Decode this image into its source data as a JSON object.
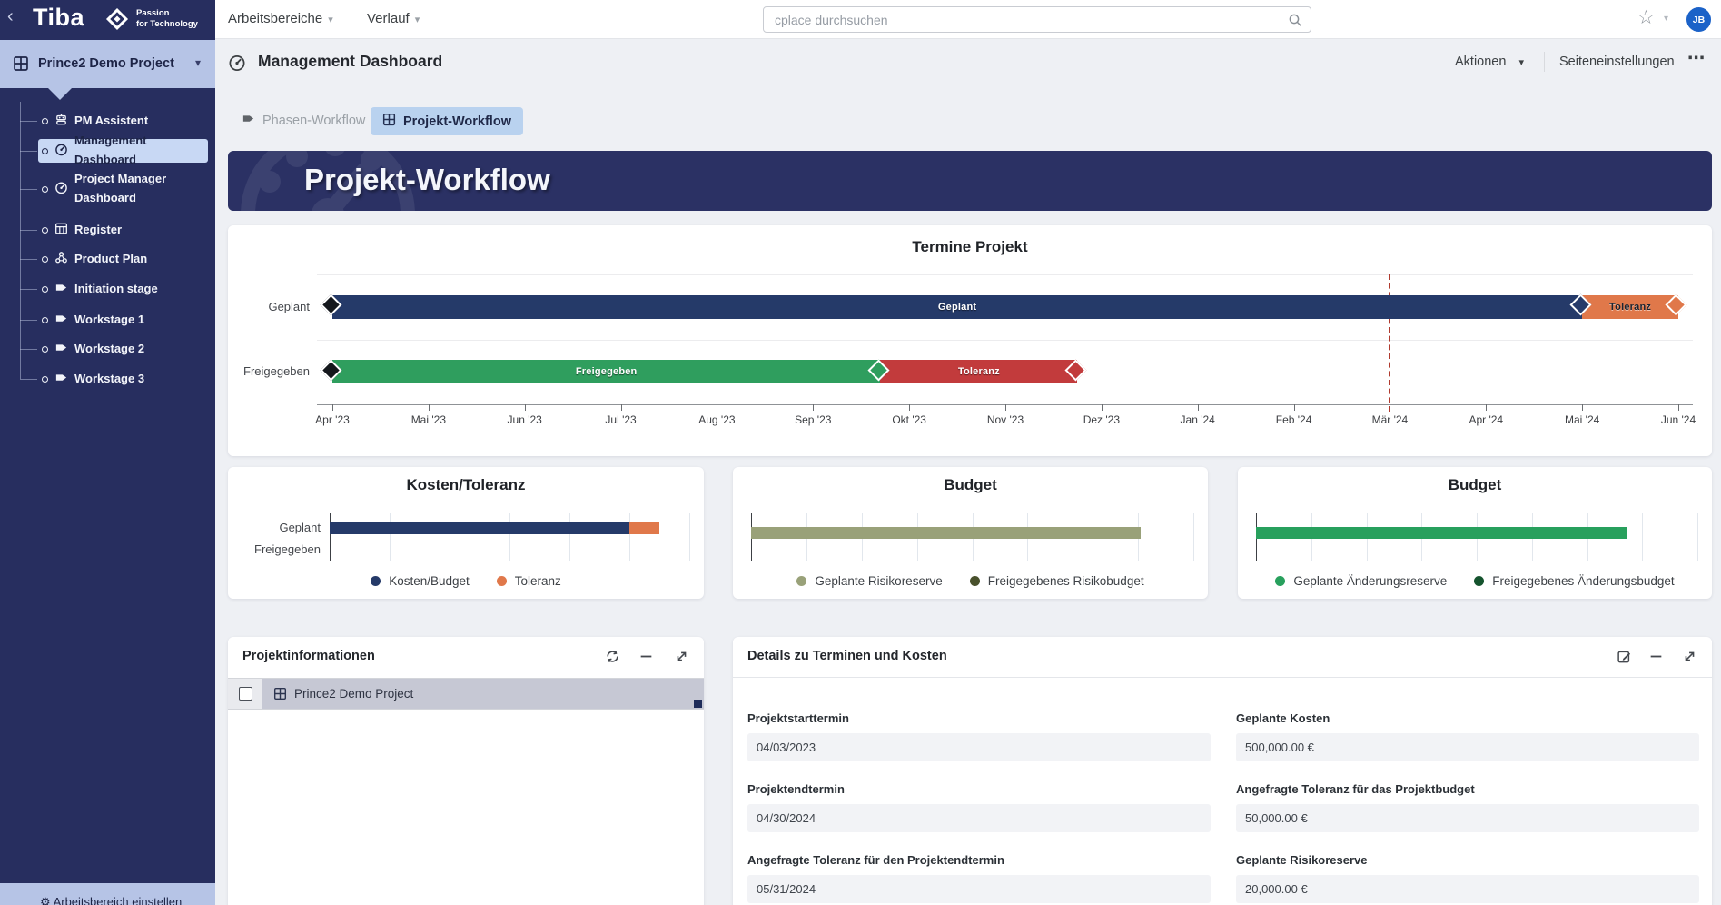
{
  "logo": {
    "brand": "Tiba",
    "tagline_line1": "Passion",
    "tagline_line2": "for Technology"
  },
  "glyphs": {
    "collapse_chevron": "‹",
    "caret_down": "▾",
    "star": "☆",
    "more_ellipsis": "⋯",
    "gear": "⚙"
  },
  "topbar": {
    "workspaces_menu": "Arbeitsbereiche",
    "history_menu": "Verlauf",
    "search_placeholder": "cplace durchsuchen",
    "avatar_initials": "JB"
  },
  "sidebar": {
    "project_selector": "Prince2 Demo Project",
    "items": [
      {
        "label": "PM Assistent",
        "icon": "robot-icon",
        "selected": false
      },
      {
        "label": "Management Dashboard",
        "icon": "gauge-icon",
        "selected": true
      },
      {
        "label": "Project Manager Dashboard",
        "icon": "gauge-icon",
        "selected": false
      },
      {
        "label": "Register",
        "icon": "table-icon",
        "selected": false
      },
      {
        "label": "Product Plan",
        "icon": "nodes-icon",
        "selected": false
      },
      {
        "label": "Initiation stage",
        "icon": "tag-icon",
        "selected": false
      },
      {
        "label": "Workstage 1",
        "icon": "tag-icon",
        "selected": false
      },
      {
        "label": "Workstage 2",
        "icon": "tag-icon",
        "selected": false
      },
      {
        "label": "Workstage 3",
        "icon": "tag-icon",
        "selected": false
      }
    ],
    "footer_item": "Arbeitsbereich einstellen"
  },
  "page": {
    "title": "Management Dashboard",
    "actions_menu": "Aktionen",
    "page_settings": "Seiteneinstellungen",
    "tabs": [
      {
        "label": "Phasen-Workflow",
        "icon": "flag-icon",
        "active": false
      },
      {
        "label": "Projekt-Workflow",
        "icon": "grid-icon",
        "active": true
      }
    ],
    "banner_title": "Projekt-Workflow"
  },
  "chart_data": [
    {
      "type": "gantt",
      "title": "Termine Projekt",
      "x_ticks": [
        "Apr '23",
        "Mai '23",
        "Jun '23",
        "Jul '23",
        "Aug '23",
        "Sep '23",
        "Okt '23",
        "Nov '23",
        "Dez '23",
        "Jan '24",
        "Feb '24",
        "Mär '24",
        "Apr '24",
        "Mai '24",
        "Jun '24"
      ],
      "axis_note": "month units, 0 = Apr '23 tick, 14 = Jun '24 tick",
      "today_marker": {
        "month": 11,
        "color": "#b03a2e"
      },
      "rows": [
        {
          "label": "Geplant",
          "segments": [
            {
              "name": "Geplant",
              "from_month": 0,
              "to_month": 13,
              "from_date": "04/03/2023",
              "to_date": "04/30/2024",
              "color": "#253a69",
              "label_dark": false
            },
            {
              "name": "Toleranz",
              "from_month": 13,
              "to_month": 14,
              "to_date": "05/31/2024",
              "color": "#e0784a",
              "label_dark": true
            }
          ],
          "milestones": [
            {
              "month": 0,
              "color": "#14171c"
            },
            {
              "month": 13,
              "color": "#253a69"
            },
            {
              "month": 14,
              "color": "#e0784a"
            }
          ]
        },
        {
          "label": "Freigegeben",
          "segments": [
            {
              "name": "Freigegeben",
              "from_month": 0,
              "to_month": 5.7,
              "color": "#2f9e5e",
              "label_dark": false
            },
            {
              "name": "Toleranz",
              "from_month": 5.7,
              "to_month": 7.75,
              "color": "#c23b3c",
              "label_dark": false
            }
          ],
          "milestones": [
            {
              "month": 0,
              "color": "#14171c"
            },
            {
              "month": 5.7,
              "color": "#2f9e5e"
            },
            {
              "month": 7.75,
              "color": "#c23b3c"
            }
          ]
        }
      ]
    },
    {
      "type": "bar",
      "title": "Kosten/Toleranz",
      "orientation": "horizontal",
      "stacked": true,
      "categories": [
        "Geplant",
        "Freigegeben"
      ],
      "series": [
        {
          "name": "Kosten/Budget",
          "color": "#253a69",
          "values": [
            500000,
            0
          ]
        },
        {
          "name": "Toleranz",
          "color": "#e0784a",
          "values": [
            50000,
            0
          ]
        }
      ],
      "xlim": [
        0,
        600000
      ],
      "grid_intervals": 6,
      "grid": true,
      "legend_position": "bottom"
    },
    {
      "type": "bar",
      "title": "Budget",
      "orientation": "horizontal",
      "stacked": true,
      "categories": [
        ""
      ],
      "series": [
        {
          "name": "Geplante Risikoreserve",
          "color": "#99a179",
          "values": [
            20000
          ]
        },
        {
          "name": "Freigegebenes Risikobudget",
          "color": "#49512c",
          "values": [
            0
          ]
        }
      ],
      "xlim": [
        0,
        22700
      ],
      "grid_intervals": 8,
      "grid": true,
      "legend_position": "bottom"
    },
    {
      "type": "bar",
      "title": "Budget",
      "orientation": "horizontal",
      "stacked": true,
      "categories": [
        ""
      ],
      "series": [
        {
          "name": "Geplante Änderungsreserve",
          "color": "#28a05d",
          "values": [
            10000
          ]
        },
        {
          "name": "Freigegebenes Änderungsbudget",
          "color": "#14532d",
          "values": [
            0
          ]
        }
      ],
      "xlim": [
        0,
        11900
      ],
      "grid_intervals": 8,
      "grid": true,
      "values_estimated": true,
      "legend_position": "bottom"
    }
  ],
  "panels": {
    "projektinformationen": {
      "title": "Projektinformationen",
      "row_label": "Prince2 Demo Project"
    },
    "details": {
      "title": "Details zu Terminen und Kosten",
      "fields": [
        {
          "label": "Projektstarttermin",
          "value": "04/03/2023"
        },
        {
          "label": "Geplante Kosten",
          "value": "500,000.00 €"
        },
        {
          "label": "Projektendtermin",
          "value": "04/30/2024"
        },
        {
          "label": "Angefragte Toleranz für das Projektbudget",
          "value": "50,000.00 €"
        },
        {
          "label": "Angefragte Toleranz für den Projektendtermin",
          "value": "05/31/2024"
        },
        {
          "label": "Geplante Risikoreserve",
          "value": "20,000.00 €"
        }
      ]
    }
  },
  "colors": {
    "sidebar_bg": "#272e5f",
    "selector_bg": "#b6c4e6",
    "selected_item_bg": "#c8d8f4",
    "banner_bg": "#2b3164",
    "active_tab_bg": "#b9d2ef",
    "navy_bar": "#253a69",
    "orange": "#e0784a",
    "green": "#2f9e5e",
    "red": "#c23b3c",
    "olive": "#99a179",
    "dark_olive": "#49512c",
    "bright_green": "#28a05d",
    "dark_green": "#14532d",
    "avatar_bg": "#1b62c8",
    "today_line": "#b03a2e",
    "content_bg": "#eef0f4"
  }
}
